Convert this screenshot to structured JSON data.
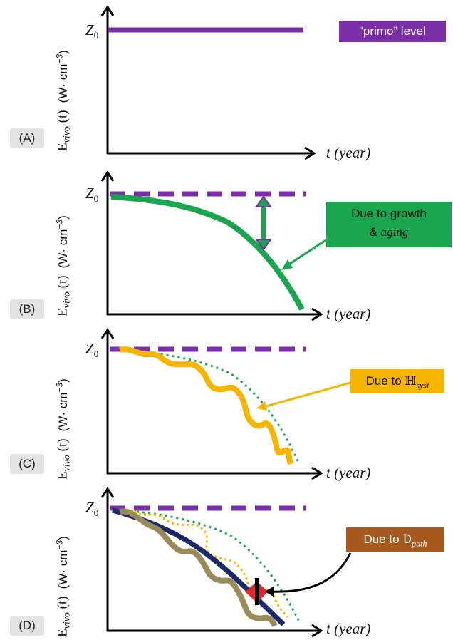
{
  "figure": {
    "panels": [
      {
        "id": "A",
        "label": "(A)",
        "y_symbol": "E",
        "y_subscript": "vivo",
        "y_arg": "(t)",
        "y_units_prefix": "(W· cm",
        "y_units_exp": "−3",
        "y_units_suffix": ")",
        "z0_symbol": "Z",
        "z0_sub": "0",
        "x_label": "t (year)",
        "callout": {
          "line1": "“primo” level",
          "line2": "",
          "color": "#7a2fa8"
        }
      },
      {
        "id": "B",
        "label": "(B)",
        "y_symbol": "E",
        "y_subscript": "vivo",
        "y_arg": "(t)",
        "y_units_prefix": "(W· cm",
        "y_units_exp": "−3",
        "y_units_suffix": ")",
        "z0_symbol": "Z",
        "z0_sub": "0",
        "x_label": "t (year)",
        "callout": {
          "line1": "Due to growth",
          "line2_prefix": "& ",
          "line2_italic": "aging",
          "color": "#19a64f"
        }
      },
      {
        "id": "C",
        "label": "(C)",
        "y_symbol": "E",
        "y_subscript": "vivo",
        "y_arg": "(t)",
        "y_units_prefix": "(W· cm",
        "y_units_exp": "−3",
        "y_units_suffix": ")",
        "z0_symbol": "Z",
        "z0_sub": "0",
        "x_label": "t (year)",
        "callout": {
          "prefix": "Due to ",
          "symbol": "ℍ",
          "sub": "syst",
          "color": "#f7b500"
        }
      },
      {
        "id": "D",
        "label": "(D)",
        "y_symbol": "E",
        "y_subscript": "vivo",
        "y_arg": "(t)",
        "y_units_prefix": "(W· cm",
        "y_units_exp": "−3",
        "y_units_suffix": ")",
        "z0_symbol": "Z",
        "z0_sub": "0",
        "x_label": "t (year)",
        "callout": {
          "prefix": "Due to ",
          "symbol": "Ʋ",
          "sub": "path",
          "color": "#a85a1e"
        }
      }
    ],
    "colors": {
      "primo_level": "#7a2fa8",
      "growth_aging_curve": "#19a64f",
      "systemic_curve": "#f7b500",
      "dotted_green": "#19a64f",
      "dotted_yellow": "#f7b500",
      "reference_curve_d": "#1b2a6b",
      "pathology_curve": "#9a8c5a",
      "pathology_marker": "#e0252b",
      "axis": "#000000"
    }
  }
}
